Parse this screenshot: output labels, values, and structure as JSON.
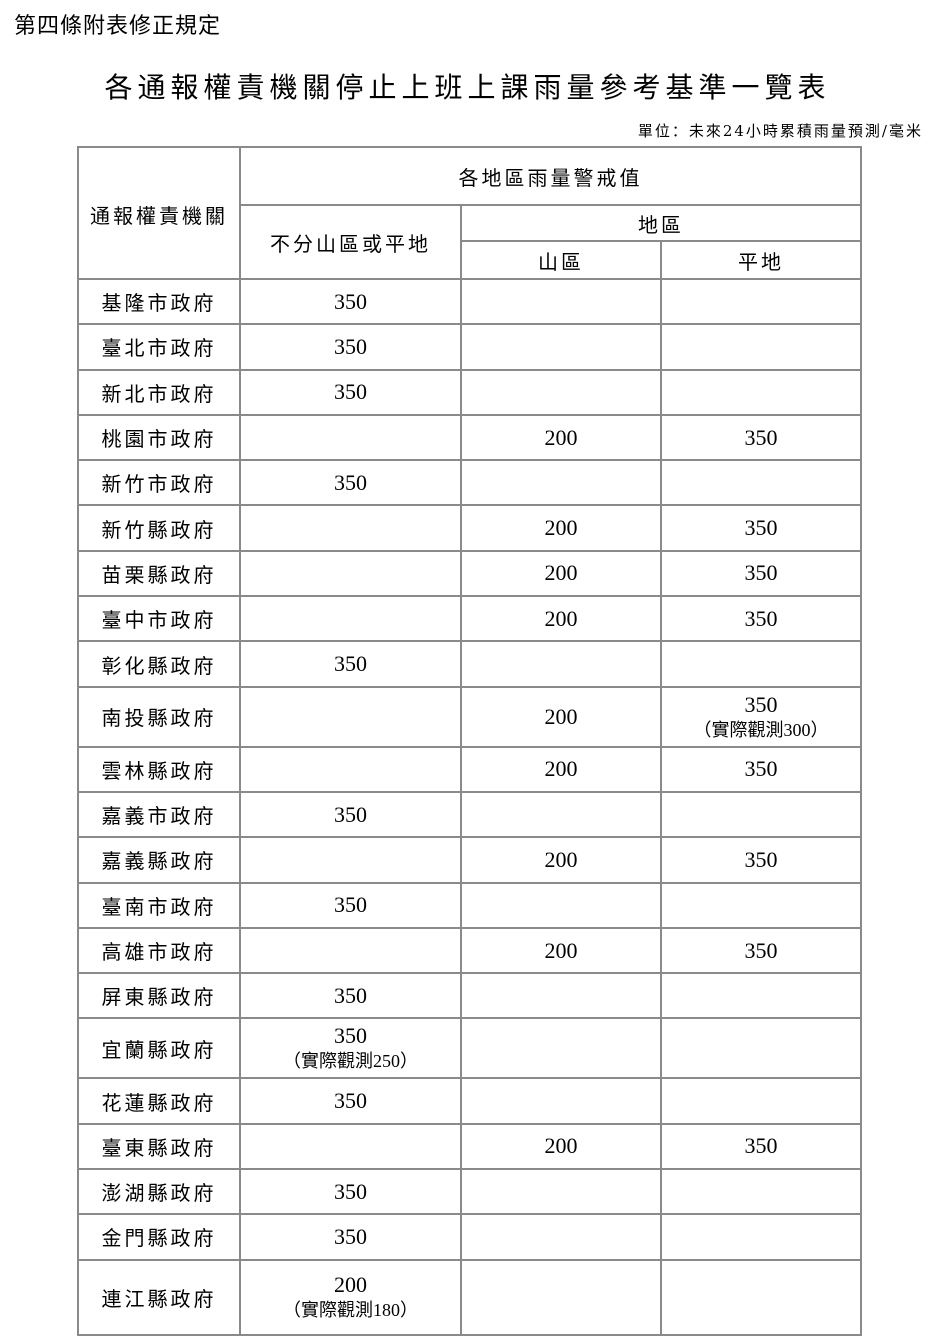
{
  "heading": "第四條附表修正規定",
  "title": "各通報權責機關停止上班上課雨量參考基準一覽表",
  "unit": "單位：未來24小時累積雨量預測/毫米",
  "headers": {
    "agency": "通報權責機關",
    "warning": "各地區雨量警戒值",
    "all": "不分山區或平地",
    "region": "地區",
    "mountain": "山區",
    "plain": "平地"
  },
  "rows": [
    {
      "agency": "基隆市政府",
      "all": "350"
    },
    {
      "agency": "臺北市政府",
      "all": "350"
    },
    {
      "agency": "新北市政府",
      "all": "350"
    },
    {
      "agency": "桃園市政府",
      "mountain": "200",
      "plain": "350"
    },
    {
      "agency": "新竹市政府",
      "all": "350"
    },
    {
      "agency": "新竹縣政府",
      "mountain": "200",
      "plain": "350"
    },
    {
      "agency": "苗栗縣政府",
      "mountain": "200",
      "plain": "350"
    },
    {
      "agency": "臺中市政府",
      "mountain": "200",
      "plain": "350"
    },
    {
      "agency": "彰化縣政府",
      "all": "350"
    },
    {
      "agency": "南投縣政府",
      "mountain": "200",
      "plain": "350",
      "plain_note": "（實際觀測300）"
    },
    {
      "agency": "雲林縣政府",
      "mountain": "200",
      "plain": "350"
    },
    {
      "agency": "嘉義市政府",
      "all": "350"
    },
    {
      "agency": "嘉義縣政府",
      "mountain": "200",
      "plain": "350"
    },
    {
      "agency": "臺南市政府",
      "all": "350"
    },
    {
      "agency": "高雄市政府",
      "mountain": "200",
      "plain": "350"
    },
    {
      "agency": "屏東縣政府",
      "all": "350"
    },
    {
      "agency": "宜蘭縣政府",
      "all": "350",
      "all_note": "（實際觀測250）"
    },
    {
      "agency": "花蓮縣政府",
      "all": "350"
    },
    {
      "agency": "臺東縣政府",
      "mountain": "200",
      "plain": "350"
    },
    {
      "agency": "澎湖縣政府",
      "all": "350"
    },
    {
      "agency": "金門縣政府",
      "all": "350"
    },
    {
      "agency": "連江縣政府",
      "all": "200",
      "all_note": "（實際觀測180）"
    }
  ]
}
